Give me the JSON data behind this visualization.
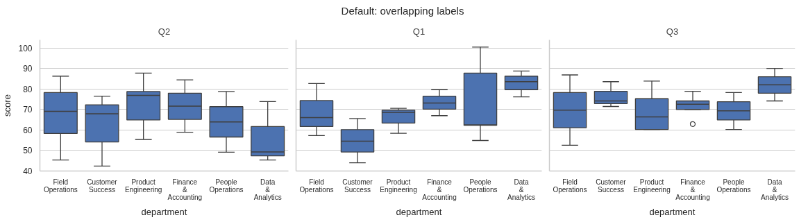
{
  "chart_data": [
    {
      "type": "box",
      "title": "Q2",
      "xlabel": "department",
      "ylabel": "score",
      "annotations": [
        "Default: overlapping labels"
      ],
      "categories": [
        "Field Operations",
        "Customer Success",
        "Product Engineering",
        "Finance & Accounting",
        "People Operations",
        "Data & Analytics"
      ],
      "color": "#4c72b0",
      "ylim": [
        40,
        104
      ],
      "yticks": [
        40,
        50,
        60,
        70,
        80,
        90,
        100
      ],
      "grid": "y",
      "boxes": [
        {
          "low": 45.4,
          "q1": 58.3,
          "median": 69.1,
          "q3": 78.3,
          "high": 86.3
        },
        {
          "low": 42.4,
          "q1": 54.2,
          "median": 67.9,
          "q3": 72.3,
          "high": 76.5
        },
        {
          "low": 55.4,
          "q1": 64.9,
          "median": 76.9,
          "q3": 78.8,
          "high": 87.8
        },
        {
          "low": 58.9,
          "q1": 65.2,
          "median": 71.7,
          "q3": 78.0,
          "high": 84.5
        },
        {
          "low": 49.2,
          "q1": 56.6,
          "median": 64.0,
          "q3": 71.4,
          "high": 78.8
        },
        {
          "low": 45.4,
          "q1": 47.4,
          "median": 49.3,
          "q3": 61.7,
          "high": 73.9
        }
      ]
    },
    {
      "type": "box",
      "title": "Q1",
      "xlabel": "department",
      "tick_labels": "x",
      "categories": [
        "Field Operations",
        "Customer Success",
        "Product Engineering",
        "Finance & Accounting",
        "People Operations",
        "Data & Analytics"
      ],
      "color": "#4c72b0",
      "ylim": [
        40,
        104
      ],
      "yticks": [
        40,
        50,
        60,
        70,
        80,
        90,
        100
      ],
      "grid": "y",
      "boxes": [
        {
          "low": 57.3,
          "q1": 61.7,
          "median": 66.1,
          "q3": 74.4,
          "high": 82.7
        },
        {
          "low": 44.0,
          "q1": 49.3,
          "median": 54.6,
          "q3": 60.2,
          "high": 65.6
        },
        {
          "low": 58.4,
          "q1": 63.4,
          "median": 68.6,
          "q3": 69.7,
          "high": 70.6
        },
        {
          "low": 67.0,
          "q1": 70.2,
          "median": 73.2,
          "q3": 76.5,
          "high": 79.7
        },
        {
          "low": 54.9,
          "q1": 62.3,
          "median": 62.5,
          "q3": 87.8,
          "high": 100.5
        },
        {
          "low": 76.2,
          "q1": 79.7,
          "median": 83.6,
          "q3": 86.3,
          "high": 88.8
        }
      ]
    },
    {
      "type": "box",
      "title": "Q3",
      "xlabel": "department",
      "tick_labels": "x",
      "categories": [
        "Field Operations",
        "Customer Success",
        "Product Engineering",
        "Finance & Accounting",
        "People Operations",
        "Data & Analytics"
      ],
      "color": "#4c72b0",
      "ylim": [
        40,
        104
      ],
      "yticks": [
        40,
        50,
        60,
        70,
        80,
        90,
        100
      ],
      "grid": "y",
      "boxes": [
        {
          "low": 52.6,
          "q1": 61.1,
          "median": 69.7,
          "q3": 78.3,
          "high": 86.9
        },
        {
          "low": 71.5,
          "q1": 72.9,
          "median": 74.2,
          "q3": 78.9,
          "high": 83.6
        },
        {
          "low": 60.3,
          "q1": 60.3,
          "median": 66.4,
          "q3": 75.3,
          "high": 83.9
        },
        {
          "low": 70.0,
          "q1": 70.0,
          "median": 72.6,
          "q3": 74.2,
          "high": 78.9,
          "outliers": [
            62.9
          ]
        },
        {
          "low": 60.3,
          "q1": 64.9,
          "median": 69.4,
          "q3": 73.8,
          "high": 78.3
        },
        {
          "low": 74.2,
          "q1": 78.0,
          "median": 82.1,
          "q3": 86.0,
          "high": 90.1
        }
      ]
    }
  ]
}
